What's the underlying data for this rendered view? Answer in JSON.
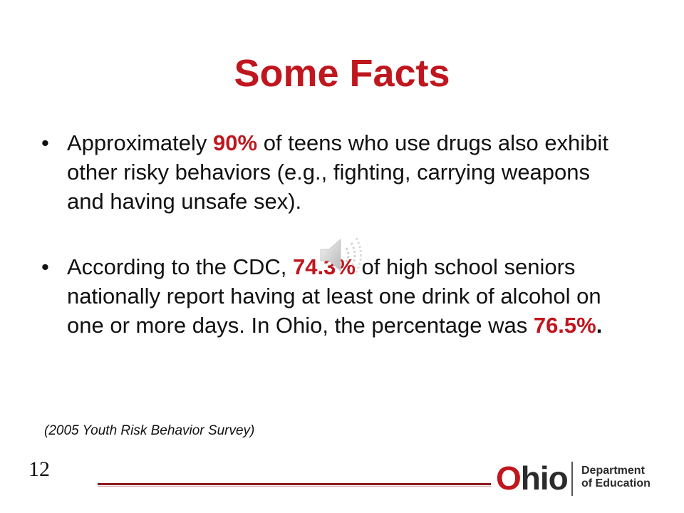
{
  "slide": {
    "title": "Some Facts",
    "bullets": [
      {
        "before": "Approximately ",
        "highlight": "90%",
        "after": " of teens who use drugs also exhibit other risky behaviors (e.g., fighting, carrying weapons and having unsafe sex)."
      },
      {
        "before": "According to the CDC, ",
        "highlight": "74.3%",
        "middle": " of high school seniors nationally report having at least one drink of alcohol on one or more days. In Ohio, the percentage was ",
        "highlight2": "76.5%",
        "end": "."
      }
    ],
    "source": "(2005 Youth Risk Behavior Survey)",
    "page_number": "12"
  },
  "footer": {
    "logo_o": "O",
    "logo_hio": "hio",
    "dept_line1": "Department",
    "dept_line2": "of Education"
  },
  "icons": {
    "audio": "speaker-icon"
  },
  "colors": {
    "accent": "#c0161e",
    "text": "#111111",
    "rule": "#8b1a1f"
  }
}
